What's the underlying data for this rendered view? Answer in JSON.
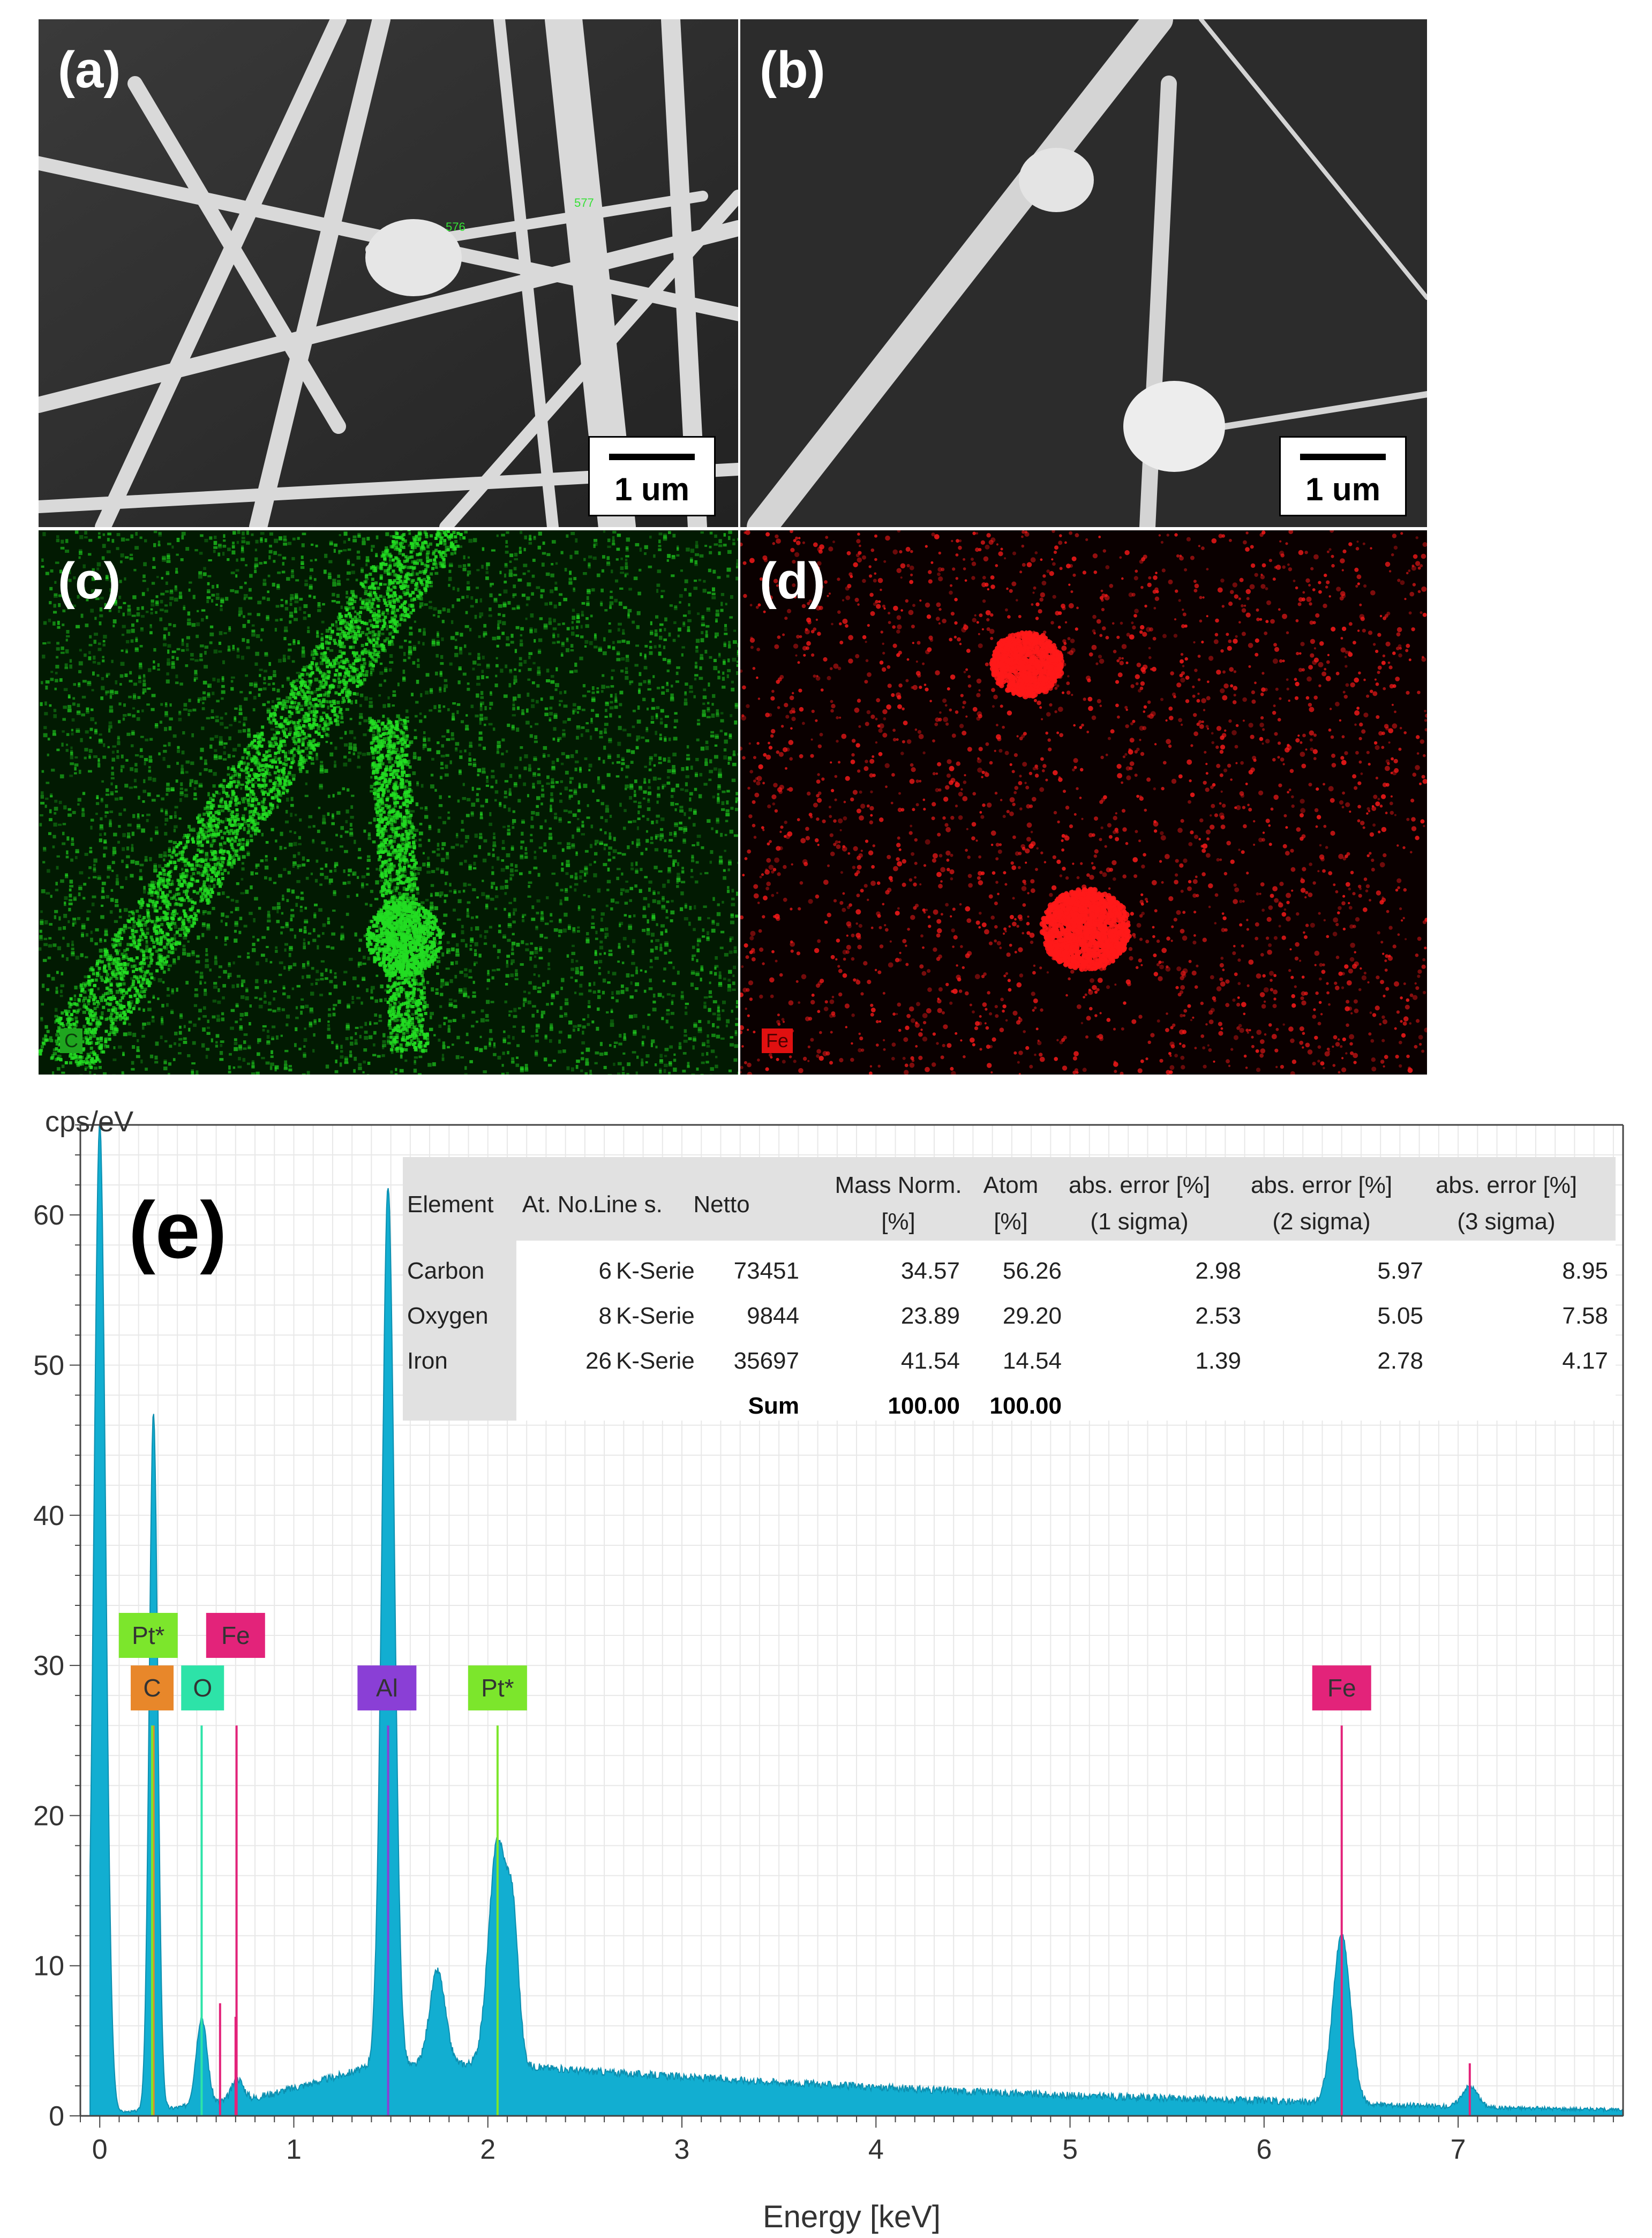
{
  "panels": {
    "a": {
      "label": "(a)",
      "scale": "1 um",
      "callouts": [
        "576",
        "577"
      ]
    },
    "b": {
      "label": "(b)",
      "scale": "1 um"
    },
    "c": {
      "label": "(c)",
      "element_tag": "C",
      "color": "#22dd22"
    },
    "d": {
      "label": "(d)",
      "element_tag": "Fe",
      "color": "#ff1a1a"
    }
  },
  "eds_panel": {
    "label": "(e)"
  },
  "table": {
    "headers": [
      {
        "top": "Element",
        "bottom": ""
      },
      {
        "top": "At. No.",
        "bottom": ""
      },
      {
        "top": "Line s.",
        "bottom": ""
      },
      {
        "top": "Netto",
        "bottom": ""
      },
      {
        "top": "Mass Norm.",
        "bottom": "[%]"
      },
      {
        "top": "Atom",
        "bottom": "[%]"
      },
      {
        "top": "abs. error [%]",
        "bottom": "(1 sigma)"
      },
      {
        "top": "abs. error [%]",
        "bottom": "(2 sigma)"
      },
      {
        "top": "abs. error [%]",
        "bottom": "(3 sigma)"
      }
    ],
    "rows": [
      {
        "element": "Carbon",
        "at_no": "6",
        "line": "K-Serie",
        "netto": "73451",
        "mass": "34.57",
        "atom": "56.26",
        "e1": "2.98",
        "e2": "5.97",
        "e3": "8.95"
      },
      {
        "element": "Oxygen",
        "at_no": "8",
        "line": "K-Serie",
        "netto": "9844",
        "mass": "23.89",
        "atom": "29.20",
        "e1": "2.53",
        "e2": "5.05",
        "e3": "7.58"
      },
      {
        "element": "Iron",
        "at_no": "26",
        "line": "K-Serie",
        "netto": "35697",
        "mass": "41.54",
        "atom": "14.54",
        "e1": "1.39",
        "e2": "2.78",
        "e3": "4.17"
      }
    ],
    "sum": {
      "label": "Sum",
      "mass": "100.00",
      "atom": "100.00"
    }
  },
  "chart_data": {
    "type": "area",
    "ylabel": "cps/eV",
    "xlabel": "Energy [keV]",
    "xlim": [
      -0.1,
      7.85
    ],
    "ylim": [
      0,
      66
    ],
    "x_ticks": [
      "0",
      "1",
      "2",
      "3",
      "4",
      "5",
      "6",
      "7"
    ],
    "y_ticks": [
      "0",
      "10",
      "20",
      "30",
      "40",
      "50",
      "60"
    ],
    "grid": true,
    "series_color": "#12aed1",
    "peaks": [
      {
        "x": 0.0,
        "y": 66,
        "width": 0.03
      },
      {
        "x": 0.277,
        "y": 46.5,
        "width": 0.022
      },
      {
        "x": 0.525,
        "y": 5.8,
        "width": 0.028
      },
      {
        "x": 0.71,
        "y": 1.4,
        "width": 0.03
      },
      {
        "x": 1.486,
        "y": 58.7,
        "width": 0.032
      },
      {
        "x": 1.74,
        "y": 6.3,
        "width": 0.04
      },
      {
        "x": 2.05,
        "y": 14.8,
        "width": 0.045
      },
      {
        "x": 2.13,
        "y": 8.5,
        "width": 0.03
      },
      {
        "x": 6.4,
        "y": 11.2,
        "width": 0.045
      },
      {
        "x": 7.06,
        "y": 1.4,
        "width": 0.04
      }
    ],
    "background": [
      [
        0.05,
        0.2
      ],
      [
        0.3,
        0.4
      ],
      [
        0.8,
        1.2
      ],
      [
        1.1,
        2.2
      ],
      [
        1.4,
        3.3
      ],
      [
        1.6,
        3.3
      ],
      [
        2.0,
        3.5
      ],
      [
        2.5,
        3.0
      ],
      [
        3.0,
        2.6
      ],
      [
        4.0,
        1.9
      ],
      [
        5.0,
        1.35
      ],
      [
        6.0,
        1.0
      ],
      [
        7.0,
        0.6
      ],
      [
        7.85,
        0.4
      ]
    ],
    "element_lines": [
      {
        "element": "C",
        "x": 0.277,
        "height": 26,
        "color": "#e8872a",
        "label_x": 0.27,
        "label_y": 28.5
      },
      {
        "element": "O",
        "x": 0.525,
        "height": 26,
        "color": "#2de3a8",
        "label_x": 0.53,
        "label_y": 28.5
      },
      {
        "element": "Fe",
        "x": 0.705,
        "height": 26,
        "color": "#e3237a",
        "label_x": 0.7,
        "label_y": 32.0
      },
      {
        "element": "Pt*",
        "x": 0.27,
        "height": 26,
        "color": "#7ce62c",
        "label_x": 0.25,
        "label_y": 32.0
      },
      {
        "element": "Al",
        "x": 1.486,
        "height": 26,
        "color": "#8a3fd6",
        "label_x": 1.48,
        "label_y": 28.5
      },
      {
        "element": "Pt*",
        "x": 2.05,
        "height": 26,
        "color": "#7ce62c",
        "label_x": 2.05,
        "label_y": 28.5
      },
      {
        "element": "Fe",
        "x": 6.4,
        "height": 26,
        "color": "#e3237a",
        "label_x": 6.4,
        "label_y": 28.5
      }
    ],
    "minor_lines": [
      {
        "x": 0.62,
        "height": 7.5,
        "color": "#e3237a"
      },
      {
        "x": 0.7,
        "height": 6.6,
        "color": "#e3237a"
      },
      {
        "x": 7.06,
        "height": 3.5,
        "color": "#e3237a"
      }
    ]
  }
}
